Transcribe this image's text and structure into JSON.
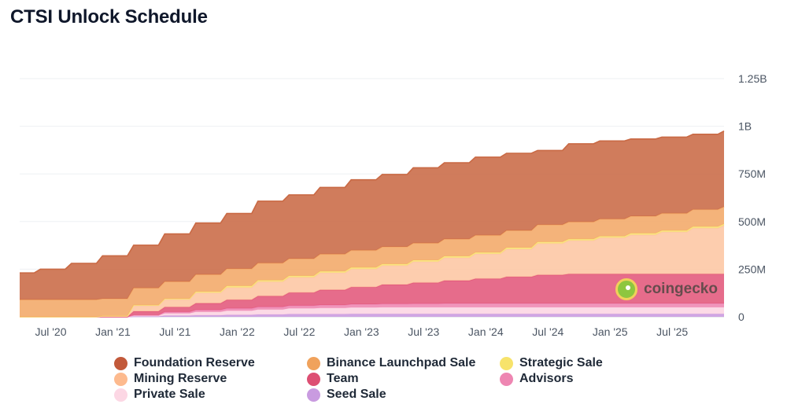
{
  "page": {
    "title": "CTSI Unlock Schedule"
  },
  "watermark": {
    "text": "coingecko",
    "icon": "coingecko-logo-icon"
  },
  "chart_data": {
    "type": "area",
    "stacked": true,
    "title": "CTSI Unlock Schedule",
    "xlabel": "",
    "ylabel": "",
    "ylim": [
      0,
      1250000000
    ],
    "grid": true,
    "legend_position": "bottom",
    "y_axis_position": "right",
    "y_ticks": [
      {
        "value": 0,
        "label": "0"
      },
      {
        "value": 250000000,
        "label": "250M"
      },
      {
        "value": 500000000,
        "label": "500M"
      },
      {
        "value": 750000000,
        "label": "750M"
      },
      {
        "value": 1000000000,
        "label": "1B"
      },
      {
        "value": 1250000000,
        "label": "1.25B"
      }
    ],
    "x_ticks": [
      {
        "value": "2020-07",
        "label": "Jul '20"
      },
      {
        "value": "2021-01",
        "label": "Jan '21"
      },
      {
        "value": "2021-07",
        "label": "Jul '21"
      },
      {
        "value": "2022-01",
        "label": "Jan '22"
      },
      {
        "value": "2022-07",
        "label": "Jul '22"
      },
      {
        "value": "2023-01",
        "label": "Jan '23"
      },
      {
        "value": "2023-07",
        "label": "Jul '23"
      },
      {
        "value": "2024-01",
        "label": "Jan '24"
      },
      {
        "value": "2024-07",
        "label": "Jul '24"
      },
      {
        "value": "2025-01",
        "label": "Jan '25"
      },
      {
        "value": "2025-07",
        "label": "Jul '25"
      }
    ],
    "x": [
      "2020-04",
      "2020-06",
      "2020-09",
      "2020-12",
      "2021-03",
      "2021-06",
      "2021-09",
      "2021-12",
      "2022-03",
      "2022-06",
      "2022-09",
      "2022-12",
      "2023-03",
      "2023-06",
      "2023-09",
      "2023-12",
      "2024-03",
      "2024-06",
      "2024-09",
      "2024-12",
      "2025-03",
      "2025-06",
      "2025-09",
      "2025-12"
    ],
    "series": [
      {
        "name": "Seed Sale",
        "color": "#c99be0",
        "values": [
          0,
          0,
          0,
          0,
          2000000,
          6000000,
          8000000,
          10000000,
          12000000,
          14000000,
          14000000,
          15000000,
          15000000,
          15000000,
          15000000,
          15000000,
          15000000,
          15000000,
          15000000,
          15000000,
          15000000,
          15000000,
          15000000,
          15000000
        ]
      },
      {
        "name": "Private Sale",
        "color": "#fcd5e3",
        "values": [
          0,
          0,
          0,
          0,
          4000000,
          12000000,
          18000000,
          22000000,
          26000000,
          30000000,
          32000000,
          34000000,
          35000000,
          35000000,
          35000000,
          35000000,
          35000000,
          35000000,
          35000000,
          35000000,
          35000000,
          35000000,
          35000000,
          35000000
        ]
      },
      {
        "name": "Advisors",
        "color": "#ee86b2",
        "values": [
          0,
          0,
          0,
          0,
          3000000,
          8000000,
          10000000,
          12000000,
          14000000,
          15000000,
          16000000,
          17000000,
          18000000,
          19000000,
          20000000,
          20000000,
          20000000,
          20000000,
          20000000,
          20000000,
          20000000,
          20000000,
          20000000,
          20000000
        ]
      },
      {
        "name": "Team",
        "color": "#e2587b",
        "values": [
          0,
          0,
          0,
          0,
          20000000,
          25000000,
          35000000,
          45000000,
          57000000,
          68000000,
          79000000,
          90000000,
          101000000,
          110000000,
          120000000,
          130000000,
          140000000,
          150000000,
          155000000,
          155000000,
          155000000,
          155000000,
          155000000,
          155000000
        ]
      },
      {
        "name": "Mining Reserve",
        "color": "#fdc6a3",
        "values": [
          0,
          0,
          0,
          5000000,
          30000000,
          40000000,
          55000000,
          65000000,
          75000000,
          80000000,
          90000000,
          95000000,
          100000000,
          110000000,
          120000000,
          130000000,
          145000000,
          165000000,
          175000000,
          190000000,
          205000000,
          220000000,
          240000000,
          255000000
        ]
      },
      {
        "name": "Strategic Sale",
        "color": "#f9e27a",
        "values": [
          0,
          0,
          0,
          0,
          2000000,
          4000000,
          6000000,
          8000000,
          8000000,
          8000000,
          8000000,
          8000000,
          8000000,
          8000000,
          8000000,
          8000000,
          8000000,
          8000000,
          8000000,
          8000000,
          8000000,
          8000000,
          8000000,
          8000000
        ]
      },
      {
        "name": "Binance Launchpad Sale",
        "color": "#f2a868",
        "values": [
          90000000,
          90000000,
          90000000,
          90000000,
          90000000,
          90000000,
          90000000,
          90000000,
          90000000,
          90000000,
          90000000,
          90000000,
          90000000,
          90000000,
          90000000,
          90000000,
          90000000,
          90000000,
          90000000,
          90000000,
          90000000,
          90000000,
          90000000,
          90000000
        ]
      },
      {
        "name": "Foundation Reserve",
        "color": "#c96a45",
        "values": [
          140000000,
          160000000,
          190000000,
          225000000,
          225000000,
          250000000,
          270000000,
          290000000,
          325000000,
          335000000,
          350000000,
          370000000,
          380000000,
          395000000,
          400000000,
          410000000,
          405000000,
          390000000,
          410000000,
          410000000,
          405000000,
          400000000,
          395000000,
          397000000
        ]
      }
    ]
  },
  "legend": {
    "items": [
      {
        "label": "Foundation Reserve",
        "color": "#c2593a"
      },
      {
        "label": "Binance Launchpad Sale",
        "color": "#f0a25c"
      },
      {
        "label": "Strategic Sale",
        "color": "#f7e36b"
      },
      {
        "label": "Mining Reserve",
        "color": "#fdba8e"
      },
      {
        "label": "Team",
        "color": "#dd4f73"
      },
      {
        "label": "Advisors",
        "color": "#ee86b2"
      },
      {
        "label": "Private Sale",
        "color": "#fcd7e4"
      },
      {
        "label": "Seed Sale",
        "color": "#c99be0"
      }
    ]
  }
}
